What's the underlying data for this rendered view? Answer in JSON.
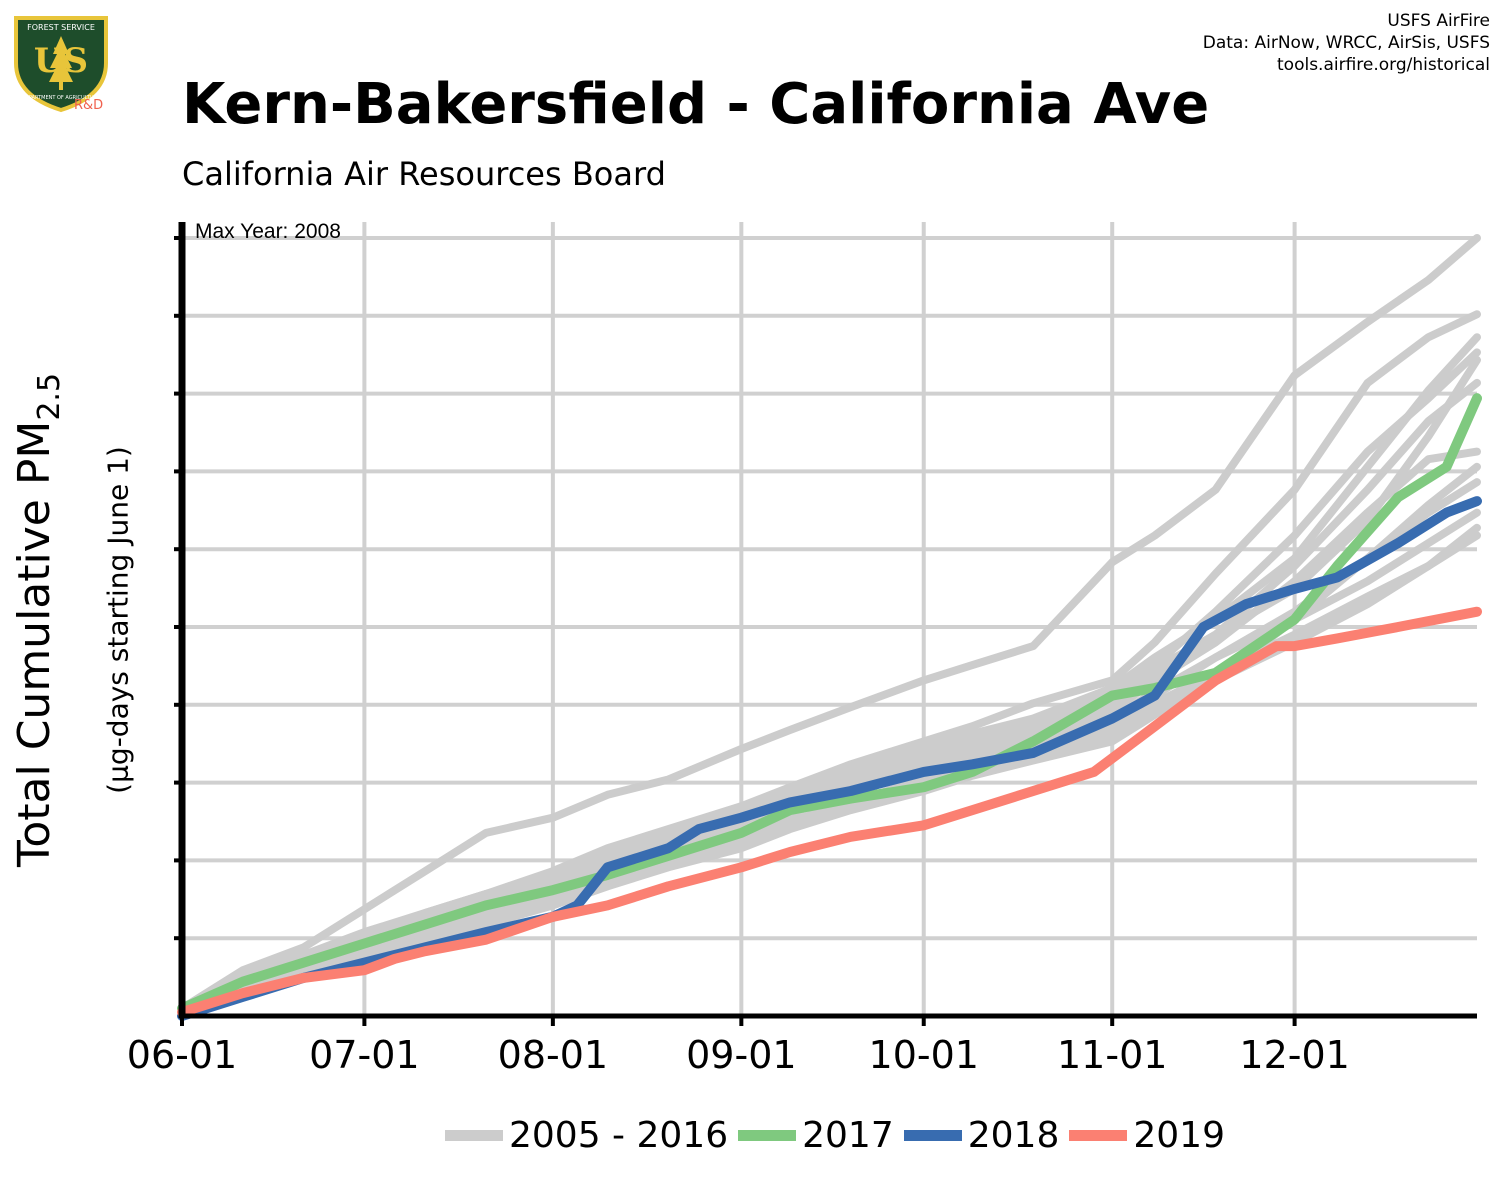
{
  "header": {
    "title": "Kern-Bakersfield - California Ave",
    "subtitle": "California Air Resources Board",
    "credits": [
      "USFS AirFire",
      "Data: AirNow, WRCC, AirSis, USFS",
      "tools.airfire.org/historical"
    ],
    "logo": {
      "icon": "usfs-shield-logo",
      "top_text": "FOREST SERVICE",
      "letters": "US",
      "bottom_text": "DEPARTMENT OF AGRICULTURE",
      "tag": "R&D"
    }
  },
  "colors": {
    "historic": "#cccccc",
    "y2017": "#7fc97f",
    "y2018": "#386cb0",
    "y2019": "#fb8072",
    "grid": "#d0d0d0",
    "axis": "#000000"
  },
  "chart_data": {
    "type": "line",
    "title": "Kern-Bakersfield - California Ave",
    "subtitle": "California Air Resources Board",
    "xlabel": "",
    "ylabel": "Total Cumulative PM",
    "ylabel_sub": "2.5",
    "ylabel_note": "(µg-days starting June 1)",
    "annotation": "Max Year: 2008",
    "x_ticks": [
      "06-01",
      "07-01",
      "08-01",
      "09-01",
      "10-01",
      "11-01",
      "12-01"
    ],
    "x_tick_day": [
      0,
      30,
      61,
      92,
      122,
      153,
      183
    ],
    "x_range": [
      0,
      213
    ],
    "y_range": [
      0,
      10.2
    ],
    "y_tick_count": 10,
    "y_units": "relative (y-axis unlabeled)",
    "grid": true,
    "legend": [
      "2005 - 2016",
      "2017",
      "2018",
      "2019"
    ],
    "legend_position": "bottom",
    "series": [
      {
        "name": "2005 - 2016",
        "group": "historic",
        "x": [
          0,
          10,
          20,
          30,
          40,
          50,
          61,
          70,
          80,
          92,
          100,
          110,
          122,
          130,
          140,
          153,
          160,
          170,
          183,
          195,
          205,
          213
        ],
        "values": [
          0.1,
          0.6,
          0.9,
          1.4,
          1.9,
          2.4,
          2.6,
          2.9,
          3.1,
          3.5,
          3.75,
          4.05,
          4.4,
          4.6,
          4.85,
          5.95,
          6.3,
          6.9,
          8.4,
          9.1,
          9.65,
          10.2
        ]
      },
      {
        "name": "2005 - 2016",
        "group": "historic",
        "x": [
          0,
          10,
          20,
          30,
          40,
          50,
          61,
          70,
          80,
          92,
          100,
          110,
          122,
          130,
          140,
          153,
          160,
          170,
          183,
          195,
          205,
          213
        ],
        "values": [
          0.1,
          0.4,
          0.7,
          1.0,
          1.3,
          1.6,
          1.9,
          2.2,
          2.45,
          2.75,
          3.0,
          3.3,
          3.6,
          3.8,
          4.1,
          4.4,
          4.9,
          5.8,
          6.9,
          8.3,
          8.9,
          9.2
        ]
      },
      {
        "name": "2005 - 2016",
        "group": "historic",
        "x": [
          0,
          10,
          20,
          30,
          40,
          50,
          61,
          70,
          80,
          92,
          100,
          110,
          122,
          130,
          140,
          153,
          160,
          170,
          183,
          195,
          205,
          213
        ],
        "values": [
          0.1,
          0.45,
          0.75,
          1.05,
          1.35,
          1.6,
          1.85,
          2.15,
          2.4,
          2.65,
          2.9,
          3.2,
          3.5,
          3.7,
          3.9,
          4.3,
          4.7,
          5.2,
          6.0,
          7.2,
          8.2,
          8.9
        ]
      },
      {
        "name": "2005 - 2016",
        "group": "historic",
        "x": [
          0,
          10,
          20,
          30,
          40,
          50,
          61,
          70,
          80,
          92,
          100,
          110,
          122,
          130,
          140,
          153,
          160,
          170,
          183,
          195,
          205,
          213
        ],
        "values": [
          0.1,
          0.35,
          0.65,
          0.9,
          1.15,
          1.45,
          1.75,
          2.0,
          2.25,
          2.55,
          2.8,
          3.05,
          3.35,
          3.55,
          3.8,
          4.15,
          4.6,
          5.3,
          6.3,
          7.4,
          8.1,
          8.7
        ]
      },
      {
        "name": "2005 - 2016",
        "group": "historic",
        "x": [
          0,
          10,
          20,
          30,
          40,
          50,
          61,
          70,
          80,
          92,
          100,
          110,
          122,
          130,
          140,
          153,
          160,
          170,
          183,
          195,
          205,
          213
        ],
        "values": [
          0.1,
          0.4,
          0.7,
          0.95,
          1.2,
          1.5,
          1.8,
          2.05,
          2.35,
          2.6,
          2.85,
          3.1,
          3.4,
          3.6,
          3.85,
          4.2,
          4.55,
          5.0,
          5.6,
          6.5,
          7.6,
          8.6
        ]
      },
      {
        "name": "2005 - 2016",
        "group": "historic",
        "x": [
          0,
          10,
          20,
          30,
          40,
          50,
          61,
          70,
          80,
          92,
          100,
          110,
          122,
          130,
          140,
          153,
          160,
          170,
          183,
          195,
          205,
          213
        ],
        "values": [
          0.1,
          0.5,
          0.8,
          1.1,
          1.35,
          1.6,
          1.85,
          2.1,
          2.35,
          2.6,
          2.85,
          3.1,
          3.35,
          3.55,
          3.75,
          4.1,
          4.5,
          5.0,
          5.9,
          6.9,
          7.8,
          8.3
        ]
      },
      {
        "name": "2005 - 2016",
        "group": "historic",
        "x": [
          0,
          10,
          20,
          30,
          40,
          50,
          61,
          70,
          80,
          92,
          100,
          110,
          122,
          130,
          140,
          153,
          160,
          170,
          183,
          195,
          205,
          213
        ],
        "values": [
          0.1,
          0.35,
          0.6,
          0.85,
          1.1,
          1.35,
          1.65,
          1.9,
          2.15,
          2.4,
          2.65,
          2.95,
          3.25,
          3.45,
          3.65,
          4.0,
          4.4,
          4.9,
          5.7,
          6.6,
          7.3,
          7.4
        ]
      },
      {
        "name": "2005 - 2016",
        "group": "historic",
        "x": [
          0,
          10,
          20,
          30,
          40,
          50,
          61,
          70,
          80,
          92,
          100,
          110,
          122,
          130,
          140,
          153,
          160,
          170,
          183,
          195,
          205,
          213
        ],
        "values": [
          0.1,
          0.35,
          0.6,
          0.85,
          1.1,
          1.35,
          1.65,
          1.95,
          2.2,
          2.45,
          2.7,
          2.95,
          3.2,
          3.4,
          3.55,
          3.85,
          4.2,
          4.7,
          5.3,
          6.0,
          6.6,
          7.0
        ]
      },
      {
        "name": "2005 - 2016",
        "group": "historic",
        "x": [
          0,
          10,
          20,
          30,
          40,
          50,
          61,
          70,
          80,
          92,
          100,
          110,
          122,
          130,
          140,
          153,
          160,
          170,
          183,
          195,
          205,
          213
        ],
        "values": [
          0.1,
          0.4,
          0.65,
          0.9,
          1.15,
          1.4,
          1.7,
          1.95,
          2.2,
          2.45,
          2.7,
          2.95,
          3.2,
          3.4,
          3.6,
          3.9,
          4.25,
          4.7,
          5.2,
          5.7,
          6.2,
          6.6
        ]
      },
      {
        "name": "2005 - 2016",
        "group": "historic",
        "x": [
          0,
          10,
          20,
          30,
          40,
          50,
          61,
          70,
          80,
          92,
          100,
          110,
          122,
          130,
          140,
          153,
          160,
          170,
          183,
          195,
          205,
          213
        ],
        "values": [
          0.1,
          0.35,
          0.6,
          0.8,
          1.05,
          1.3,
          1.55,
          1.8,
          2.05,
          2.3,
          2.55,
          2.8,
          3.1,
          3.3,
          3.5,
          3.8,
          4.1,
          4.5,
          5.0,
          5.5,
          5.9,
          6.3
        ]
      },
      {
        "name": "2005 - 2016",
        "group": "historic",
        "x": [
          0,
          10,
          20,
          30,
          40,
          50,
          61,
          70,
          80,
          92,
          100,
          110,
          122,
          130,
          140,
          153,
          160,
          170,
          183,
          195,
          205,
          213
        ],
        "values": [
          0.1,
          0.3,
          0.55,
          0.8,
          1.0,
          1.25,
          1.5,
          1.75,
          2.0,
          2.25,
          2.5,
          2.75,
          3.0,
          3.2,
          3.4,
          3.7,
          4.0,
          4.4,
          5.2,
          6.0,
          6.7,
          7.2
        ]
      },
      {
        "name": "2005 - 2016",
        "group": "historic",
        "x": [
          0,
          10,
          20,
          30,
          40,
          50,
          61,
          70,
          80,
          92,
          100,
          110,
          122,
          130,
          140,
          153,
          160,
          170,
          183,
          195,
          205,
          213
        ],
        "values": [
          0.1,
          0.3,
          0.5,
          0.75,
          1.0,
          1.2,
          1.45,
          1.7,
          1.95,
          2.2,
          2.45,
          2.7,
          2.95,
          3.15,
          3.35,
          3.6,
          3.95,
          4.4,
          4.9,
          5.4,
          5.9,
          6.4
        ]
      },
      {
        "name": "2017",
        "x": [
          0,
          10,
          20,
          30,
          40,
          50,
          61,
          70,
          80,
          92,
          100,
          110,
          122,
          130,
          140,
          153,
          160,
          170,
          183,
          190,
          200,
          208,
          213
        ],
        "values": [
          0.1,
          0.45,
          0.7,
          0.95,
          1.2,
          1.45,
          1.65,
          1.85,
          2.1,
          2.4,
          2.7,
          2.85,
          3.0,
          3.2,
          3.6,
          4.2,
          4.3,
          4.5,
          5.2,
          5.9,
          6.8,
          7.2,
          8.1
        ]
      },
      {
        "name": "2018",
        "x": [
          0,
          10,
          20,
          30,
          40,
          50,
          61,
          65,
          70,
          80,
          85,
          92,
          100,
          110,
          122,
          130,
          140,
          153,
          160,
          168,
          175,
          183,
          190,
          200,
          208,
          213
        ],
        "values": [
          0,
          0.25,
          0.5,
          0.7,
          0.9,
          1.1,
          1.3,
          1.45,
          1.95,
          2.2,
          2.45,
          2.6,
          2.8,
          2.95,
          3.2,
          3.3,
          3.45,
          3.9,
          4.2,
          5.1,
          5.4,
          5.6,
          5.75,
          6.2,
          6.6,
          6.75
        ]
      },
      {
        "name": "2019",
        "x": [
          0,
          10,
          20,
          30,
          35,
          40,
          50,
          61,
          70,
          80,
          92,
          100,
          110,
          122,
          130,
          140,
          150,
          160,
          170,
          180,
          183,
          190,
          200,
          213
        ],
        "values": [
          0.05,
          0.3,
          0.5,
          0.6,
          0.75,
          0.85,
          1.0,
          1.3,
          1.45,
          1.7,
          1.95,
          2.15,
          2.35,
          2.5,
          2.7,
          2.95,
          3.2,
          3.8,
          4.4,
          4.85,
          4.85,
          4.95,
          5.1,
          5.3
        ]
      }
    ]
  }
}
